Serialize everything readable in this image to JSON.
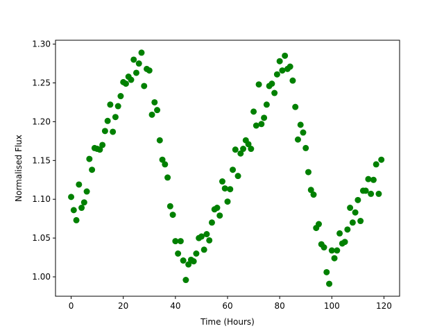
{
  "chart_data": {
    "type": "scatter",
    "xlabel": "Time (Hours)",
    "ylabel": "Normalised Flux",
    "xlim": [
      -6,
      126
    ],
    "ylim": [
      0.975,
      1.305
    ],
    "x_ticks": [
      0,
      20,
      40,
      60,
      80,
      100,
      120
    ],
    "y_ticks": [
      1.0,
      1.05,
      1.1,
      1.15,
      1.2,
      1.25,
      1.3
    ],
    "x_tick_labels": [
      "0",
      "20",
      "40",
      "60",
      "80",
      "100",
      "120"
    ],
    "y_tick_labels": [
      "1.00",
      "1.05",
      "1.10",
      "1.15",
      "1.20",
      "1.25",
      "1.30"
    ],
    "grid": false,
    "marker_color": "#008000",
    "series": [
      {
        "x": [
          0,
          1,
          2,
          3,
          4,
          5,
          6,
          7,
          8,
          9,
          10,
          11,
          12,
          13,
          14,
          15,
          16,
          17,
          18,
          19,
          20,
          21,
          22,
          23,
          24,
          25,
          26,
          27,
          28,
          29,
          30,
          31,
          32,
          33,
          34,
          35,
          36,
          37,
          38,
          39,
          40,
          41,
          42,
          43,
          44,
          45,
          46,
          47,
          48,
          49,
          50,
          51,
          52,
          53,
          54,
          55,
          56,
          57,
          58,
          59,
          60,
          61,
          62,
          63,
          64,
          65,
          66,
          67,
          68,
          69,
          70,
          71,
          72,
          73,
          74,
          75,
          76,
          77,
          78,
          79,
          80,
          81,
          82,
          83,
          84,
          85,
          86,
          87,
          88,
          89,
          90,
          91,
          92,
          93,
          94,
          95,
          96,
          97,
          98,
          99,
          100,
          101,
          102,
          103,
          104,
          105,
          106,
          107,
          108,
          109,
          110,
          111,
          112,
          113,
          114,
          115,
          116,
          117,
          118,
          119
        ],
        "y": [
          1.103,
          1.086,
          1.073,
          1.119,
          1.089,
          1.096,
          1.11,
          1.152,
          1.138,
          1.166,
          1.165,
          1.164,
          1.17,
          1.188,
          1.201,
          1.222,
          1.187,
          1.206,
          1.22,
          1.233,
          1.251,
          1.249,
          1.258,
          1.254,
          1.28,
          1.263,
          1.275,
          1.289,
          1.246,
          1.268,
          1.266,
          1.209,
          1.225,
          1.215,
          1.176,
          1.151,
          1.145,
          1.128,
          1.091,
          1.08,
          1.046,
          1.03,
          1.046,
          1.021,
          0.996,
          1.016,
          1.022,
          1.02,
          1.03,
          1.05,
          1.052,
          1.035,
          1.055,
          1.047,
          1.07,
          1.087,
          1.089,
          1.079,
          1.123,
          1.114,
          1.097,
          1.113,
          1.138,
          1.164,
          1.13,
          1.159,
          1.165,
          1.176,
          1.171,
          1.165,
          1.213,
          1.195,
          1.248,
          1.197,
          1.205,
          1.222,
          1.246,
          1.249,
          1.237,
          1.261,
          1.278,
          1.266,
          1.285,
          1.268,
          1.271,
          1.253,
          1.219,
          1.177,
          1.196,
          1.186,
          1.166,
          1.135,
          1.112,
          1.106,
          1.063,
          1.068,
          1.042,
          1.038,
          1.006,
          0.991,
          1.034,
          1.024,
          1.034,
          1.056,
          1.043,
          1.045,
          1.061,
          1.089,
          1.07,
          1.083,
          1.099,
          1.072,
          1.111,
          1.111,
          1.126,
          1.107,
          1.125,
          1.145,
          1.107,
          1.151
        ]
      }
    ]
  }
}
